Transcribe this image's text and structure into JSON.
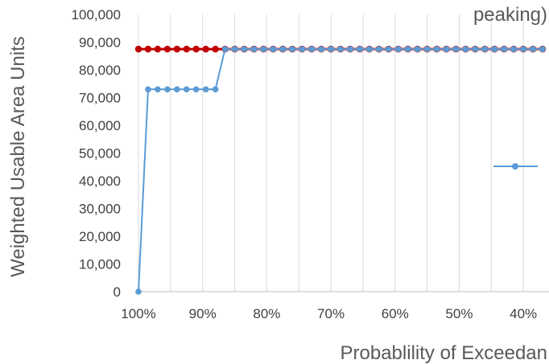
{
  "chart_data": {
    "type": "line",
    "title": "peaking)",
    "xlabel": "Probablility of Exceedan",
    "ylabel": "Weighted Usable Area Units",
    "x_direction": "reversed",
    "xlim": [
      100,
      36
    ],
    "ylim": [
      0,
      100000
    ],
    "xticks": [
      100,
      90,
      80,
      70,
      60,
      50,
      40
    ],
    "xtick_labels": [
      "100%",
      "90%",
      "80%",
      "70%",
      "60%",
      "50%",
      "40%"
    ],
    "yticks": [
      0,
      10000,
      20000,
      30000,
      40000,
      50000,
      60000,
      70000,
      80000,
      90000,
      100000
    ],
    "ytick_labels": [
      "0",
      "10,000",
      "20,000",
      "30,000",
      "40,000",
      "50,000",
      "60,000",
      "70,000",
      "80,000",
      "90,000",
      "100,000"
    ],
    "grid": "vertical",
    "legend_position": "right",
    "series": [
      {
        "color": "#5B9BD5",
        "x": [
          100,
          98.5,
          97,
          95.5,
          94,
          92.5,
          91,
          89.5,
          88,
          86.5,
          85,
          83.5,
          82,
          80.5,
          79,
          77.5,
          76,
          74.5,
          73,
          71.5,
          70,
          68.5,
          67,
          65.5,
          64,
          62.5,
          61,
          59.5,
          58,
          56.5,
          55,
          53.5,
          52,
          50.5,
          49,
          47.5,
          46,
          44.5,
          43,
          41.5,
          40,
          38.5,
          37
        ],
        "y": [
          0,
          73000,
          73000,
          73000,
          73000,
          73000,
          73000,
          73000,
          73000,
          87500,
          87500,
          87500,
          87500,
          87500,
          87500,
          87500,
          87500,
          87500,
          87500,
          87500,
          87500,
          87500,
          87500,
          87500,
          87500,
          87500,
          87500,
          87500,
          87500,
          87500,
          87500,
          87500,
          87500,
          87500,
          87500,
          87500,
          87500,
          87500,
          87500,
          87500,
          87500,
          87500,
          87500
        ]
      },
      {
        "color": "#C00000",
        "x": [
          100,
          98.5,
          97,
          95.5,
          94,
          92.5,
          91,
          89.5,
          88,
          86.5,
          85,
          83.5,
          82,
          80.5,
          79,
          77.5,
          76,
          74.5,
          73,
          71.5,
          70,
          68.5,
          67,
          65.5,
          64,
          62.5,
          61,
          59.5,
          58,
          56.5,
          55,
          53.5,
          52,
          50.5,
          49,
          47.5,
          46,
          44.5,
          43,
          41.5,
          40,
          38.5,
          37
        ],
        "y": [
          87500,
          87500,
          87500,
          87500,
          87500,
          87500,
          87500,
          87500,
          87500,
          87500,
          87500,
          87500,
          87500,
          87500,
          87500,
          87500,
          87500,
          87500,
          87500,
          87500,
          87500,
          87500,
          87500,
          87500,
          87500,
          87500,
          87500,
          87500,
          87500,
          87500,
          87500,
          87500,
          87500,
          87500,
          87500,
          87500,
          87500,
          87500,
          87500,
          87500,
          87500,
          87500,
          87500
        ]
      }
    ],
    "legend_entries": [
      {
        "series_index": 0,
        "label": ""
      }
    ]
  }
}
